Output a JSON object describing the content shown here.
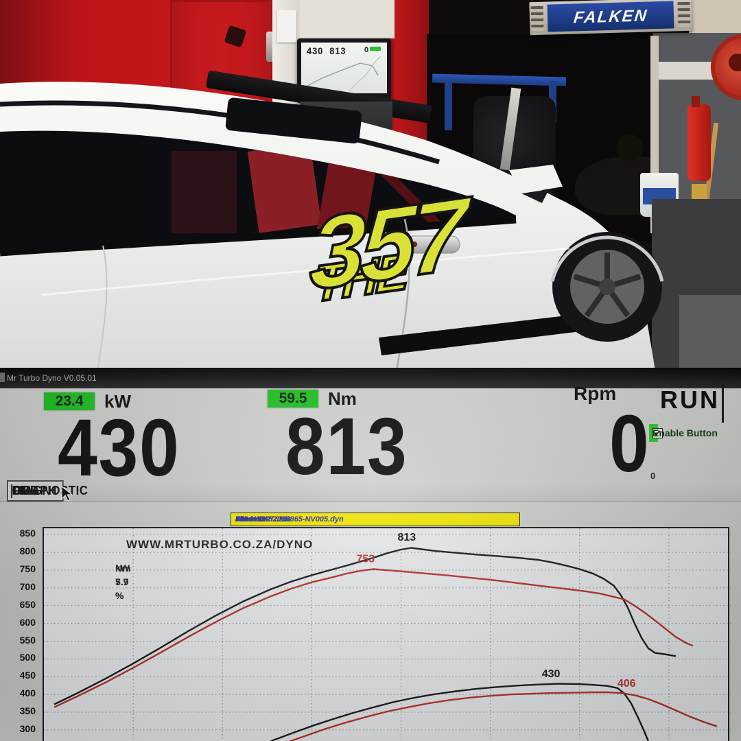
{
  "photo": {
    "falken_sign": {
      "label": "FALKEN",
      "panel_color": "#1d3a8e"
    },
    "car_decal": {
      "word": "THE",
      "number": "357",
      "color": "#d9e139"
    },
    "small_monitor": {
      "kw": "430",
      "nm": "813",
      "rpm": "0"
    }
  },
  "dyno": {
    "window_title": "Mr Turbo Dyno V0.05.01",
    "readouts": {
      "kw": {
        "delta": "23.4",
        "unit": "kW",
        "value": "430"
      },
      "nm": {
        "delta": "59.5",
        "unit": "Nm",
        "value": "813"
      },
      "rpm": {
        "unit": "Rpm",
        "sup": "0",
        "value": "0",
        "sub": "0"
      }
    },
    "run_label": "RUN",
    "enable_button": {
      "label": "Enable Button",
      "checked": true,
      "check_glyph": "✓",
      "bg": "#2ed12e"
    },
    "tabs": [
      {
        "label": "SETUP",
        "active": false,
        "sep_after": false
      },
      {
        "label": "GRAPH",
        "active": true,
        "sep_after": false
      },
      {
        "label": "FILE",
        "active": false,
        "sep_after": true
      },
      {
        "label": "DIAGNOSTIC",
        "active": false,
        "sep_after": true
      },
      {
        "label": "OBD",
        "active": false,
        "sep_after": true
      }
    ],
    "info_bar": {
      "kw": "430 kW",
      "nm": "813 Nm",
      "date": "Date: 13/7/2018",
      "time": "Time: 13:52.24s",
      "file": "File name: JNN865-NV005.dyn",
      "bg": "#f0e504",
      "fg": "#2a2f9e"
    }
  },
  "chart_data": {
    "type": "line",
    "title": "WWW.MRTURBO.CO.ZA/DYNO",
    "watermark": "WWW.MRTURBO.CO.ZA/DYNO",
    "delta_nm_label": "Nm 7.9 %",
    "delta_kw_label": "kW 5.7 %",
    "xlabel": "",
    "ylabel": "",
    "grid": "dotted",
    "legend": "none",
    "ylim": [
      265,
      868
    ],
    "xlim": [
      0,
      100
    ],
    "y_ticks": [
      850,
      800,
      750,
      700,
      650,
      600,
      550,
      500,
      450,
      400,
      350,
      300
    ],
    "x_gridlines": [
      13,
      26,
      39,
      52,
      65,
      78,
      91
    ],
    "series": [
      {
        "name": "Nm current run",
        "color": "#17181c",
        "width": 2.4,
        "points": [
          [
            1.5,
            372
          ],
          [
            5,
            405
          ],
          [
            9,
            445
          ],
          [
            13,
            487
          ],
          [
            17,
            532
          ],
          [
            21,
            578
          ],
          [
            25,
            622
          ],
          [
            29,
            662
          ],
          [
            33,
            696
          ],
          [
            36,
            718
          ],
          [
            39,
            736
          ],
          [
            42,
            752
          ],
          [
            45,
            768
          ],
          [
            48,
            785
          ],
          [
            50,
            798
          ],
          [
            52,
            808
          ],
          [
            53.5,
            813
          ],
          [
            55,
            809
          ],
          [
            57,
            804
          ],
          [
            60,
            799
          ],
          [
            63,
            794
          ],
          [
            66,
            790
          ],
          [
            69,
            785
          ],
          [
            72,
            779
          ],
          [
            74,
            772
          ],
          [
            76,
            763
          ],
          [
            78,
            753
          ],
          [
            80,
            740
          ],
          [
            81.5,
            726
          ],
          [
            83,
            706
          ],
          [
            84,
            680
          ],
          [
            85,
            645
          ],
          [
            86,
            600
          ],
          [
            87,
            560
          ],
          [
            88,
            530
          ],
          [
            89,
            517
          ],
          [
            90.5,
            513
          ],
          [
            92,
            508
          ]
        ]
      },
      {
        "name": "Nm previous run",
        "color": "#b5302b",
        "width": 2.4,
        "points": [
          [
            1.5,
            364
          ],
          [
            5,
            396
          ],
          [
            9,
            434
          ],
          [
            13,
            475
          ],
          [
            17,
            518
          ],
          [
            21,
            562
          ],
          [
            25,
            604
          ],
          [
            29,
            643
          ],
          [
            33,
            676
          ],
          [
            36,
            698
          ],
          [
            39,
            716
          ],
          [
            42,
            730
          ],
          [
            44,
            740
          ],
          [
            46,
            748
          ],
          [
            48,
            753
          ],
          [
            50,
            750
          ],
          [
            53,
            745
          ],
          [
            56,
            740
          ],
          [
            59,
            735
          ],
          [
            62,
            729
          ],
          [
            65,
            723
          ],
          [
            68,
            716
          ],
          [
            71,
            709
          ],
          [
            74,
            702
          ],
          [
            77,
            695
          ],
          [
            79,
            690
          ],
          [
            81,
            684
          ],
          [
            83,
            675
          ],
          [
            84.5,
            668
          ],
          [
            86,
            650
          ],
          [
            87.5,
            630
          ],
          [
            89,
            608
          ],
          [
            90.5,
            585
          ],
          [
            92,
            562
          ],
          [
            93.5,
            545
          ],
          [
            94.5,
            537
          ]
        ]
      },
      {
        "name": "kW current run",
        "color": "#17181c",
        "width": 2.4,
        "points": [
          [
            33,
            268
          ],
          [
            36,
            290
          ],
          [
            39,
            311
          ],
          [
            42,
            330
          ],
          [
            45,
            348
          ],
          [
            48,
            364
          ],
          [
            51,
            379
          ],
          [
            54,
            391
          ],
          [
            57,
            401
          ],
          [
            60,
            409
          ],
          [
            63,
            416
          ],
          [
            66,
            421
          ],
          [
            69,
            425
          ],
          [
            72,
            428
          ],
          [
            75,
            430
          ],
          [
            78,
            429
          ],
          [
            80,
            427
          ],
          [
            82,
            424
          ],
          [
            83.5,
            418
          ],
          [
            84.5,
            403
          ],
          [
            85.5,
            375
          ],
          [
            86.5,
            335
          ],
          [
            87.5,
            292
          ],
          [
            88,
            268
          ]
        ]
      },
      {
        "name": "kW previous run",
        "color": "#b5302b",
        "width": 2.4,
        "points": [
          [
            35,
            262
          ],
          [
            38,
            283
          ],
          [
            41,
            303
          ],
          [
            44,
            321
          ],
          [
            47,
            337
          ],
          [
            50,
            352
          ],
          [
            53,
            364
          ],
          [
            56,
            375
          ],
          [
            59,
            384
          ],
          [
            62,
            391
          ],
          [
            65,
            396
          ],
          [
            68,
            400
          ],
          [
            71,
            402
          ],
          [
            74,
            404
          ],
          [
            77,
            405
          ],
          [
            80,
            406
          ],
          [
            82,
            406
          ],
          [
            84,
            404
          ],
          [
            86,
            398
          ],
          [
            88,
            387
          ],
          [
            90,
            372
          ],
          [
            92,
            355
          ],
          [
            94,
            338
          ],
          [
            96,
            323
          ],
          [
            98,
            310
          ]
        ]
      }
    ],
    "annotations": [
      {
        "text": "813",
        "x": 51.5,
        "y": 833,
        "color": "#17181c"
      },
      {
        "text": "753",
        "x": 45.5,
        "y": 772,
        "color": "#b5302b"
      },
      {
        "text": "430",
        "x": 72.5,
        "y": 449,
        "color": "#17181c"
      },
      {
        "text": "406",
        "x": 83.5,
        "y": 422,
        "color": "#b5302b"
      }
    ]
  }
}
